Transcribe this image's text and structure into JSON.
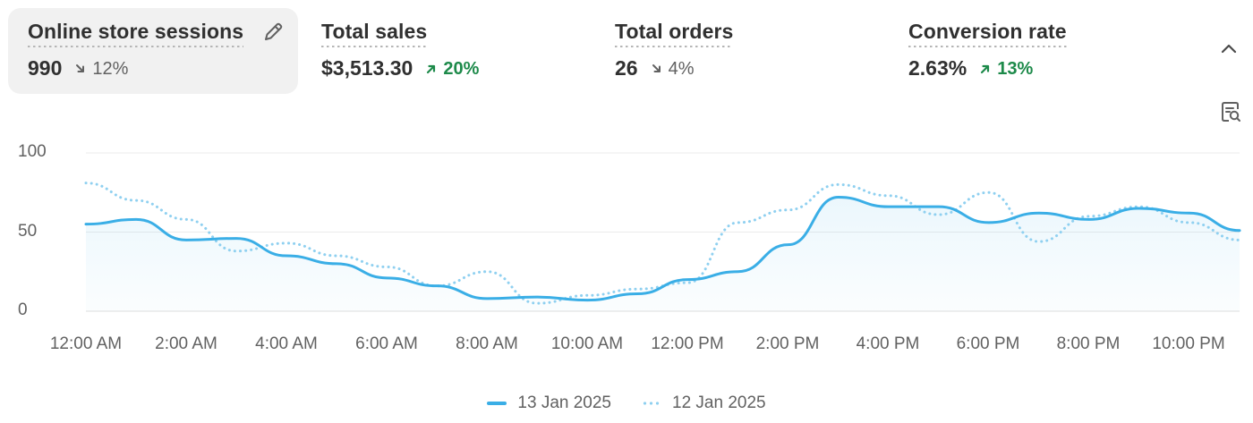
{
  "metrics": [
    {
      "title": "Online store sessions",
      "value": "990",
      "change": "12%",
      "direction": "down",
      "selected": true
    },
    {
      "title": "Total sales",
      "value": "$3,513.30",
      "change": "20%",
      "direction": "up",
      "selected": false
    },
    {
      "title": "Total orders",
      "value": "26",
      "change": "4%",
      "direction": "down",
      "selected": false
    },
    {
      "title": "Conversion rate",
      "value": "2.63%",
      "change": "13%",
      "direction": "up",
      "selected": false
    }
  ],
  "icons": {
    "edit": "pencil-icon",
    "collapse": "chevron-up-icon",
    "insights": "search-insights-icon"
  },
  "colors": {
    "accent": "#3aaee6",
    "compare": "#8fd0f0",
    "up": "#1d8a4a",
    "down": "#616161"
  },
  "chart_data": {
    "type": "line",
    "title": "Online store sessions",
    "ylim": [
      0,
      100
    ],
    "y_ticks": [
      "100",
      "50",
      "0"
    ],
    "x_tick_labels": [
      "12:00 AM",
      "2:00 AM",
      "4:00 AM",
      "6:00 AM",
      "8:00 AM",
      "10:00 AM",
      "12:00 PM",
      "2:00 PM",
      "4:00 PM",
      "6:00 PM",
      "8:00 PM",
      "10:00 PM"
    ],
    "x_hours": [
      0,
      1,
      2,
      3,
      4,
      5,
      6,
      7,
      8,
      9,
      10,
      11,
      12,
      13,
      14,
      15,
      16,
      17,
      18,
      19,
      20,
      21,
      22,
      23
    ],
    "series": [
      {
        "name": "13 Jan 2025",
        "style": "solid",
        "values": [
          55,
          58,
          45,
          46,
          35,
          30,
          21,
          16,
          8,
          9,
          7,
          11,
          20,
          25,
          42,
          72,
          66,
          66,
          56,
          62,
          58,
          65,
          62,
          51
        ]
      },
      {
        "name": "12 Jan 2025",
        "style": "dotted",
        "values": [
          81,
          70,
          58,
          38,
          43,
          35,
          28,
          16,
          25,
          5,
          10,
          14,
          18,
          56,
          64,
          80,
          73,
          61,
          75,
          44,
          60,
          66,
          56,
          45
        ]
      }
    ],
    "grid": true,
    "legend": "bottom-center"
  }
}
